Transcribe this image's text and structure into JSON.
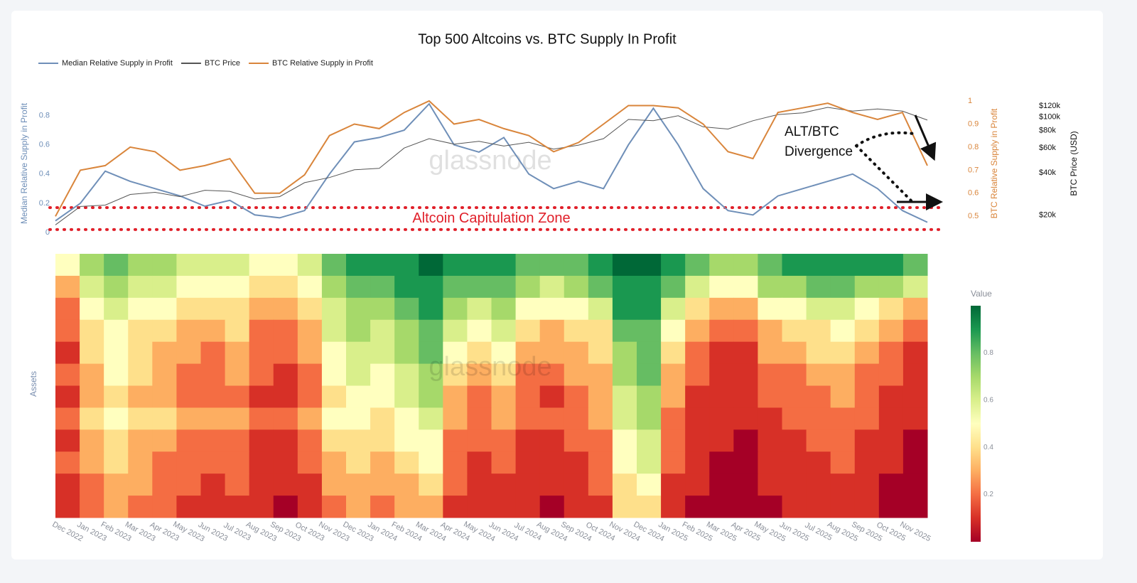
{
  "chart_data": [
    {
      "type": "line",
      "title": "Top 500 Altcoins vs. BTC Supply In Profit",
      "watermark": "glassnode",
      "x": [
        "Dec 2022",
        "Jan 2023",
        "Feb 2023",
        "Mar 2023",
        "Apr 2023",
        "May 2023",
        "Jun 2023",
        "Jul 2023",
        "Aug 2023",
        "Sep 2023",
        "Oct 2023",
        "Nov 2023",
        "Dec 2023",
        "Jan 2024",
        "Feb 2024",
        "Mar 2024",
        "Apr 2024",
        "May 2024",
        "Jun 2024",
        "Jul 2024",
        "Aug 2024",
        "Sep 2024",
        "Oct 2024",
        "Nov 2024",
        "Dec 2024",
        "Jan 2025",
        "Feb 2025",
        "Mar 2025",
        "Apr 2025",
        "May 2025",
        "Jun 2025",
        "Jul 2025",
        "Aug 2025",
        "Sep 2025",
        "Oct 2025",
        "Nov 2025"
      ],
      "ylabel": "Median Relative Supply in Profit",
      "y2label": "BTC Relative Supply in Profit",
      "y3label": "BTC Price (USD)",
      "ylim": [
        0,
        0.9
      ],
      "yticks": [
        0,
        0.2,
        0.4,
        0.6,
        0.8
      ],
      "y2lim": [
        0.43,
        1.0
      ],
      "y2ticks": [
        0.5,
        0.6,
        0.7,
        0.8,
        0.9,
        1
      ],
      "y3lim": [
        15000,
        130000
      ],
      "y3log": true,
      "y3ticks": [
        {
          "value": 20000,
          "label": "$20k"
        },
        {
          "value": 40000,
          "label": "$40k"
        },
        {
          "value": 60000,
          "label": "$60k"
        },
        {
          "value": 80000,
          "label": "$80k"
        },
        {
          "value": 100000,
          "label": "$100k"
        },
        {
          "value": 120000,
          "label": "$120k"
        }
      ],
      "legend": "top-left",
      "series": [
        {
          "name": "Median Relative Supply in Profit",
          "color": "#6f8fb8",
          "axis": "y",
          "values": [
            0.08,
            0.2,
            0.42,
            0.35,
            0.3,
            0.25,
            0.18,
            0.22,
            0.12,
            0.1,
            0.15,
            0.4,
            0.62,
            0.65,
            0.7,
            0.88,
            0.6,
            0.55,
            0.65,
            0.4,
            0.3,
            0.35,
            0.3,
            0.6,
            0.85,
            0.6,
            0.3,
            0.15,
            0.12,
            0.25,
            0.3,
            0.35,
            0.4,
            0.3,
            0.15,
            0.07
          ]
        },
        {
          "name": "BTC Price",
          "color": "#555555",
          "axis": "y3",
          "values": [
            17000,
            23000,
            23500,
            28000,
            29000,
            27000,
            30000,
            29500,
            26000,
            27000,
            34000,
            37000,
            42000,
            43000,
            60000,
            70000,
            64000,
            67000,
            62000,
            66000,
            59000,
            63000,
            70000,
            96000,
            94000,
            102000,
            85000,
            82000,
            94000,
            104000,
            107000,
            117000,
            110000,
            114000,
            110000,
            95000
          ]
        },
        {
          "name": "BTC Relative Supply in Profit",
          "color": "#d9853b",
          "axis": "y2",
          "values": [
            0.5,
            0.7,
            0.72,
            0.8,
            0.78,
            0.7,
            0.72,
            0.75,
            0.6,
            0.6,
            0.68,
            0.85,
            0.9,
            0.88,
            0.95,
            1.0,
            0.9,
            0.92,
            0.88,
            0.85,
            0.78,
            0.82,
            0.9,
            0.98,
            0.98,
            0.97,
            0.9,
            0.78,
            0.75,
            0.95,
            0.97,
            0.99,
            0.95,
            0.92,
            0.95,
            0.72
          ]
        }
      ],
      "zone": {
        "label": "Altcoin Capitulation Zone",
        "range": [
          0.02,
          0.17
        ],
        "color": "#e0202a"
      },
      "annotation": "ALT/BTC Divergence"
    },
    {
      "type": "heatmap",
      "ylabel": "Assets",
      "watermark": "glassnode",
      "x": [
        "Dec 2022",
        "Jan 2023",
        "Feb 2023",
        "Mar 2023",
        "Apr 2023",
        "May 2023",
        "Jun 2023",
        "Jul 2023",
        "Aug 2023",
        "Sep 2023",
        "Oct 2023",
        "Nov 2023",
        "Dec 2023",
        "Jan 2024",
        "Feb 2024",
        "Mar 2024",
        "Apr 2024",
        "May 2024",
        "Jun 2024",
        "Jul 2024",
        "Aug 2024",
        "Sep 2024",
        "Oct 2024",
        "Nov 2024",
        "Dec 2024",
        "Jan 2025",
        "Feb 2025",
        "Mar 2025",
        "Apr 2025",
        "May 2025",
        "Jun 2025",
        "Jul 2025",
        "Aug 2025",
        "Sep 2025",
        "Oct 2025",
        "Nov 2025"
      ],
      "y": [
        null,
        null,
        null,
        null,
        null,
        null,
        null,
        null,
        null,
        null,
        null,
        null
      ],
      "colorscale": [
        "#a50026",
        "#d73027",
        "#f46d43",
        "#fdae61",
        "#fee08b",
        "#ffffbf",
        "#d9ef8b",
        "#a6d96a",
        "#66bd63",
        "#1a9850",
        "#006837"
      ],
      "colorbar": {
        "title": "Value",
        "range": [
          0,
          1
        ],
        "ticks": [
          0.2,
          0.4,
          0.6,
          0.8
        ]
      },
      "z": [
        [
          0.5,
          0.7,
          0.8,
          0.7,
          0.7,
          0.6,
          0.6,
          0.6,
          0.5,
          0.5,
          0.6,
          0.8,
          0.9,
          0.9,
          0.9,
          1.0,
          0.9,
          0.9,
          0.9,
          0.8,
          0.8,
          0.8,
          0.9,
          1.0,
          1.0,
          0.9,
          0.8,
          0.7,
          0.7,
          0.8,
          0.9,
          0.9,
          0.9,
          0.9,
          0.9,
          0.8
        ],
        [
          0.3,
          0.6,
          0.7,
          0.6,
          0.6,
          0.5,
          0.5,
          0.5,
          0.4,
          0.4,
          0.5,
          0.7,
          0.8,
          0.8,
          0.9,
          0.9,
          0.8,
          0.8,
          0.8,
          0.7,
          0.6,
          0.7,
          0.8,
          0.9,
          0.9,
          0.8,
          0.6,
          0.5,
          0.5,
          0.7,
          0.7,
          0.8,
          0.8,
          0.7,
          0.7,
          0.6
        ],
        [
          0.2,
          0.5,
          0.6,
          0.5,
          0.5,
          0.4,
          0.4,
          0.4,
          0.3,
          0.3,
          0.4,
          0.6,
          0.7,
          0.7,
          0.8,
          0.9,
          0.7,
          0.6,
          0.7,
          0.5,
          0.5,
          0.5,
          0.6,
          0.9,
          0.9,
          0.6,
          0.4,
          0.3,
          0.3,
          0.5,
          0.5,
          0.6,
          0.6,
          0.5,
          0.4,
          0.3
        ],
        [
          0.2,
          0.4,
          0.5,
          0.4,
          0.4,
          0.3,
          0.3,
          0.4,
          0.2,
          0.2,
          0.3,
          0.6,
          0.7,
          0.6,
          0.7,
          0.8,
          0.6,
          0.5,
          0.6,
          0.4,
          0.3,
          0.4,
          0.4,
          0.8,
          0.8,
          0.5,
          0.3,
          0.2,
          0.2,
          0.3,
          0.4,
          0.4,
          0.5,
          0.4,
          0.3,
          0.2
        ],
        [
          0.1,
          0.4,
          0.5,
          0.4,
          0.3,
          0.3,
          0.2,
          0.3,
          0.2,
          0.2,
          0.3,
          0.5,
          0.6,
          0.6,
          0.7,
          0.8,
          0.5,
          0.4,
          0.5,
          0.3,
          0.3,
          0.3,
          0.4,
          0.7,
          0.8,
          0.4,
          0.2,
          0.1,
          0.1,
          0.3,
          0.3,
          0.4,
          0.4,
          0.3,
          0.2,
          0.1
        ],
        [
          0.2,
          0.3,
          0.5,
          0.4,
          0.3,
          0.2,
          0.2,
          0.3,
          0.2,
          0.1,
          0.2,
          0.5,
          0.6,
          0.5,
          0.6,
          0.7,
          0.4,
          0.3,
          0.4,
          0.2,
          0.2,
          0.3,
          0.3,
          0.7,
          0.8,
          0.3,
          0.2,
          0.1,
          0.1,
          0.2,
          0.2,
          0.3,
          0.3,
          0.2,
          0.2,
          0.1
        ],
        [
          0.1,
          0.3,
          0.4,
          0.3,
          0.3,
          0.2,
          0.2,
          0.2,
          0.1,
          0.1,
          0.2,
          0.4,
          0.5,
          0.5,
          0.6,
          0.7,
          0.3,
          0.2,
          0.3,
          0.2,
          0.1,
          0.2,
          0.3,
          0.6,
          0.7,
          0.3,
          0.1,
          0.1,
          0.1,
          0.2,
          0.2,
          0.2,
          0.3,
          0.2,
          0.1,
          0.1
        ],
        [
          0.2,
          0.4,
          0.5,
          0.4,
          0.4,
          0.3,
          0.3,
          0.3,
          0.2,
          0.2,
          0.3,
          0.5,
          0.5,
          0.4,
          0.5,
          0.6,
          0.3,
          0.2,
          0.3,
          0.2,
          0.2,
          0.2,
          0.3,
          0.6,
          0.7,
          0.2,
          0.1,
          0.1,
          0.1,
          0.1,
          0.2,
          0.2,
          0.2,
          0.2,
          0.1,
          0.1
        ],
        [
          0.1,
          0.3,
          0.4,
          0.3,
          0.3,
          0.2,
          0.2,
          0.2,
          0.1,
          0.1,
          0.2,
          0.4,
          0.4,
          0.4,
          0.5,
          0.5,
          0.2,
          0.2,
          0.2,
          0.1,
          0.1,
          0.2,
          0.2,
          0.5,
          0.6,
          0.2,
          0.1,
          0.1,
          0.0,
          0.1,
          0.1,
          0.2,
          0.2,
          0.1,
          0.1,
          0.0
        ],
        [
          0.2,
          0.3,
          0.4,
          0.3,
          0.2,
          0.2,
          0.2,
          0.2,
          0.1,
          0.1,
          0.2,
          0.3,
          0.4,
          0.3,
          0.4,
          0.5,
          0.2,
          0.1,
          0.2,
          0.1,
          0.1,
          0.1,
          0.2,
          0.5,
          0.6,
          0.2,
          0.1,
          0.0,
          0.0,
          0.1,
          0.1,
          0.1,
          0.2,
          0.1,
          0.1,
          0.0
        ],
        [
          0.1,
          0.2,
          0.3,
          0.3,
          0.2,
          0.2,
          0.1,
          0.2,
          0.1,
          0.1,
          0.1,
          0.3,
          0.3,
          0.3,
          0.3,
          0.4,
          0.2,
          0.1,
          0.1,
          0.1,
          0.1,
          0.1,
          0.2,
          0.4,
          0.5,
          0.1,
          0.1,
          0.0,
          0.0,
          0.1,
          0.1,
          0.1,
          0.1,
          0.1,
          0.0,
          0.0
        ],
        [
          0.1,
          0.2,
          0.3,
          0.2,
          0.2,
          0.1,
          0.1,
          0.1,
          0.1,
          0.0,
          0.1,
          0.2,
          0.3,
          0.2,
          0.3,
          0.3,
          0.1,
          0.1,
          0.1,
          0.1,
          0.0,
          0.1,
          0.1,
          0.4,
          0.4,
          0.1,
          0.0,
          0.0,
          0.0,
          0.0,
          0.1,
          0.1,
          0.1,
          0.1,
          0.0,
          0.0
        ]
      ]
    }
  ]
}
